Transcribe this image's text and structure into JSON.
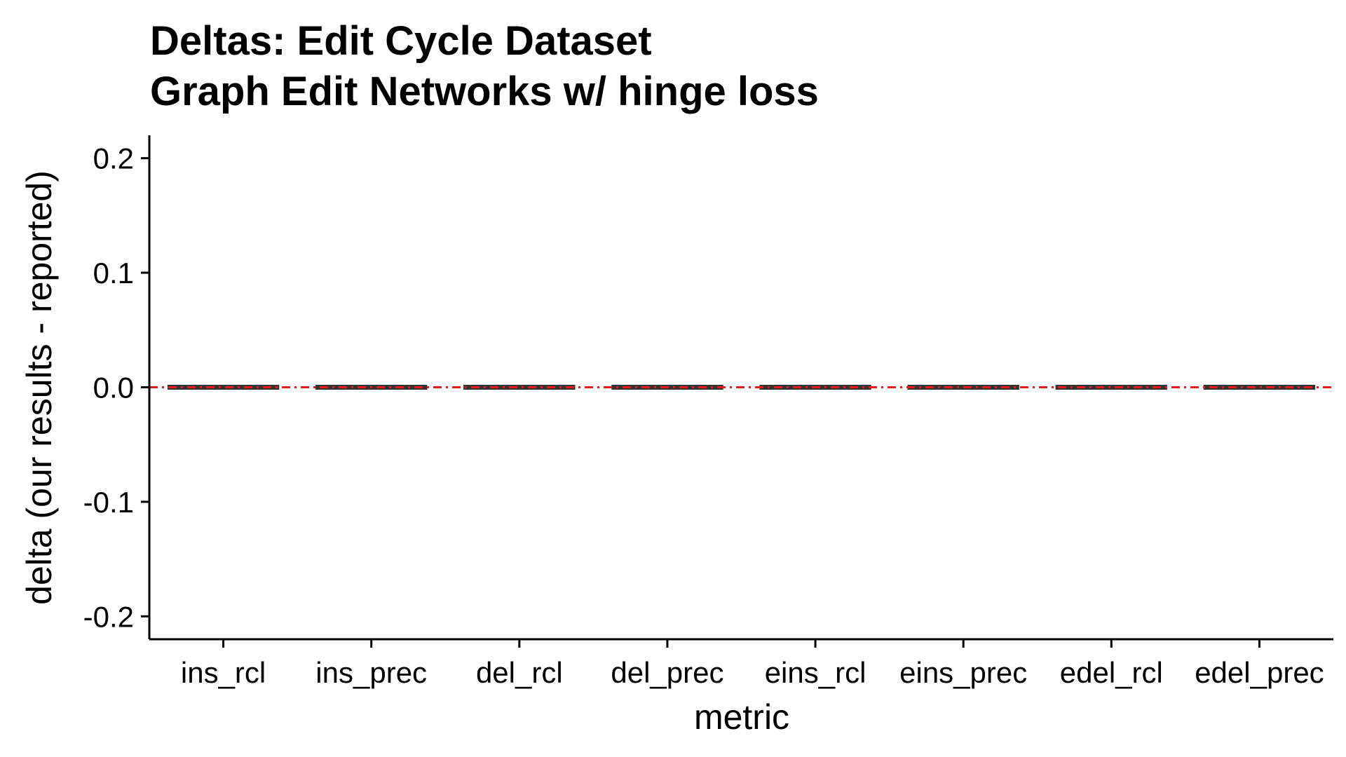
{
  "chart_data": {
    "type": "boxplot",
    "title": "Deltas: Edit Cycle Dataset",
    "subtitle": "Graph Edit Networks w/ hinge loss",
    "xlabel": "metric",
    "ylabel": "delta (our results - reported)",
    "categories": [
      "ins_rcl",
      "ins_prec",
      "del_rcl",
      "del_prec",
      "eins_rcl",
      "eins_prec",
      "edel_rcl",
      "edel_prec"
    ],
    "values": [
      0,
      0,
      0,
      0,
      0,
      0,
      0,
      0
    ],
    "ylim": [
      -0.22,
      0.22
    ],
    "yticks": [
      -0.2,
      -0.1,
      0.0,
      0.1,
      0.2
    ],
    "ytick_labels": [
      "-0.2",
      "-0.1",
      "0.0",
      "0.1",
      "0.2"
    ],
    "reference_line": {
      "y": 0,
      "style": "dashed",
      "color": "#e41a1c"
    },
    "box_color": "#333333",
    "grid": false
  }
}
